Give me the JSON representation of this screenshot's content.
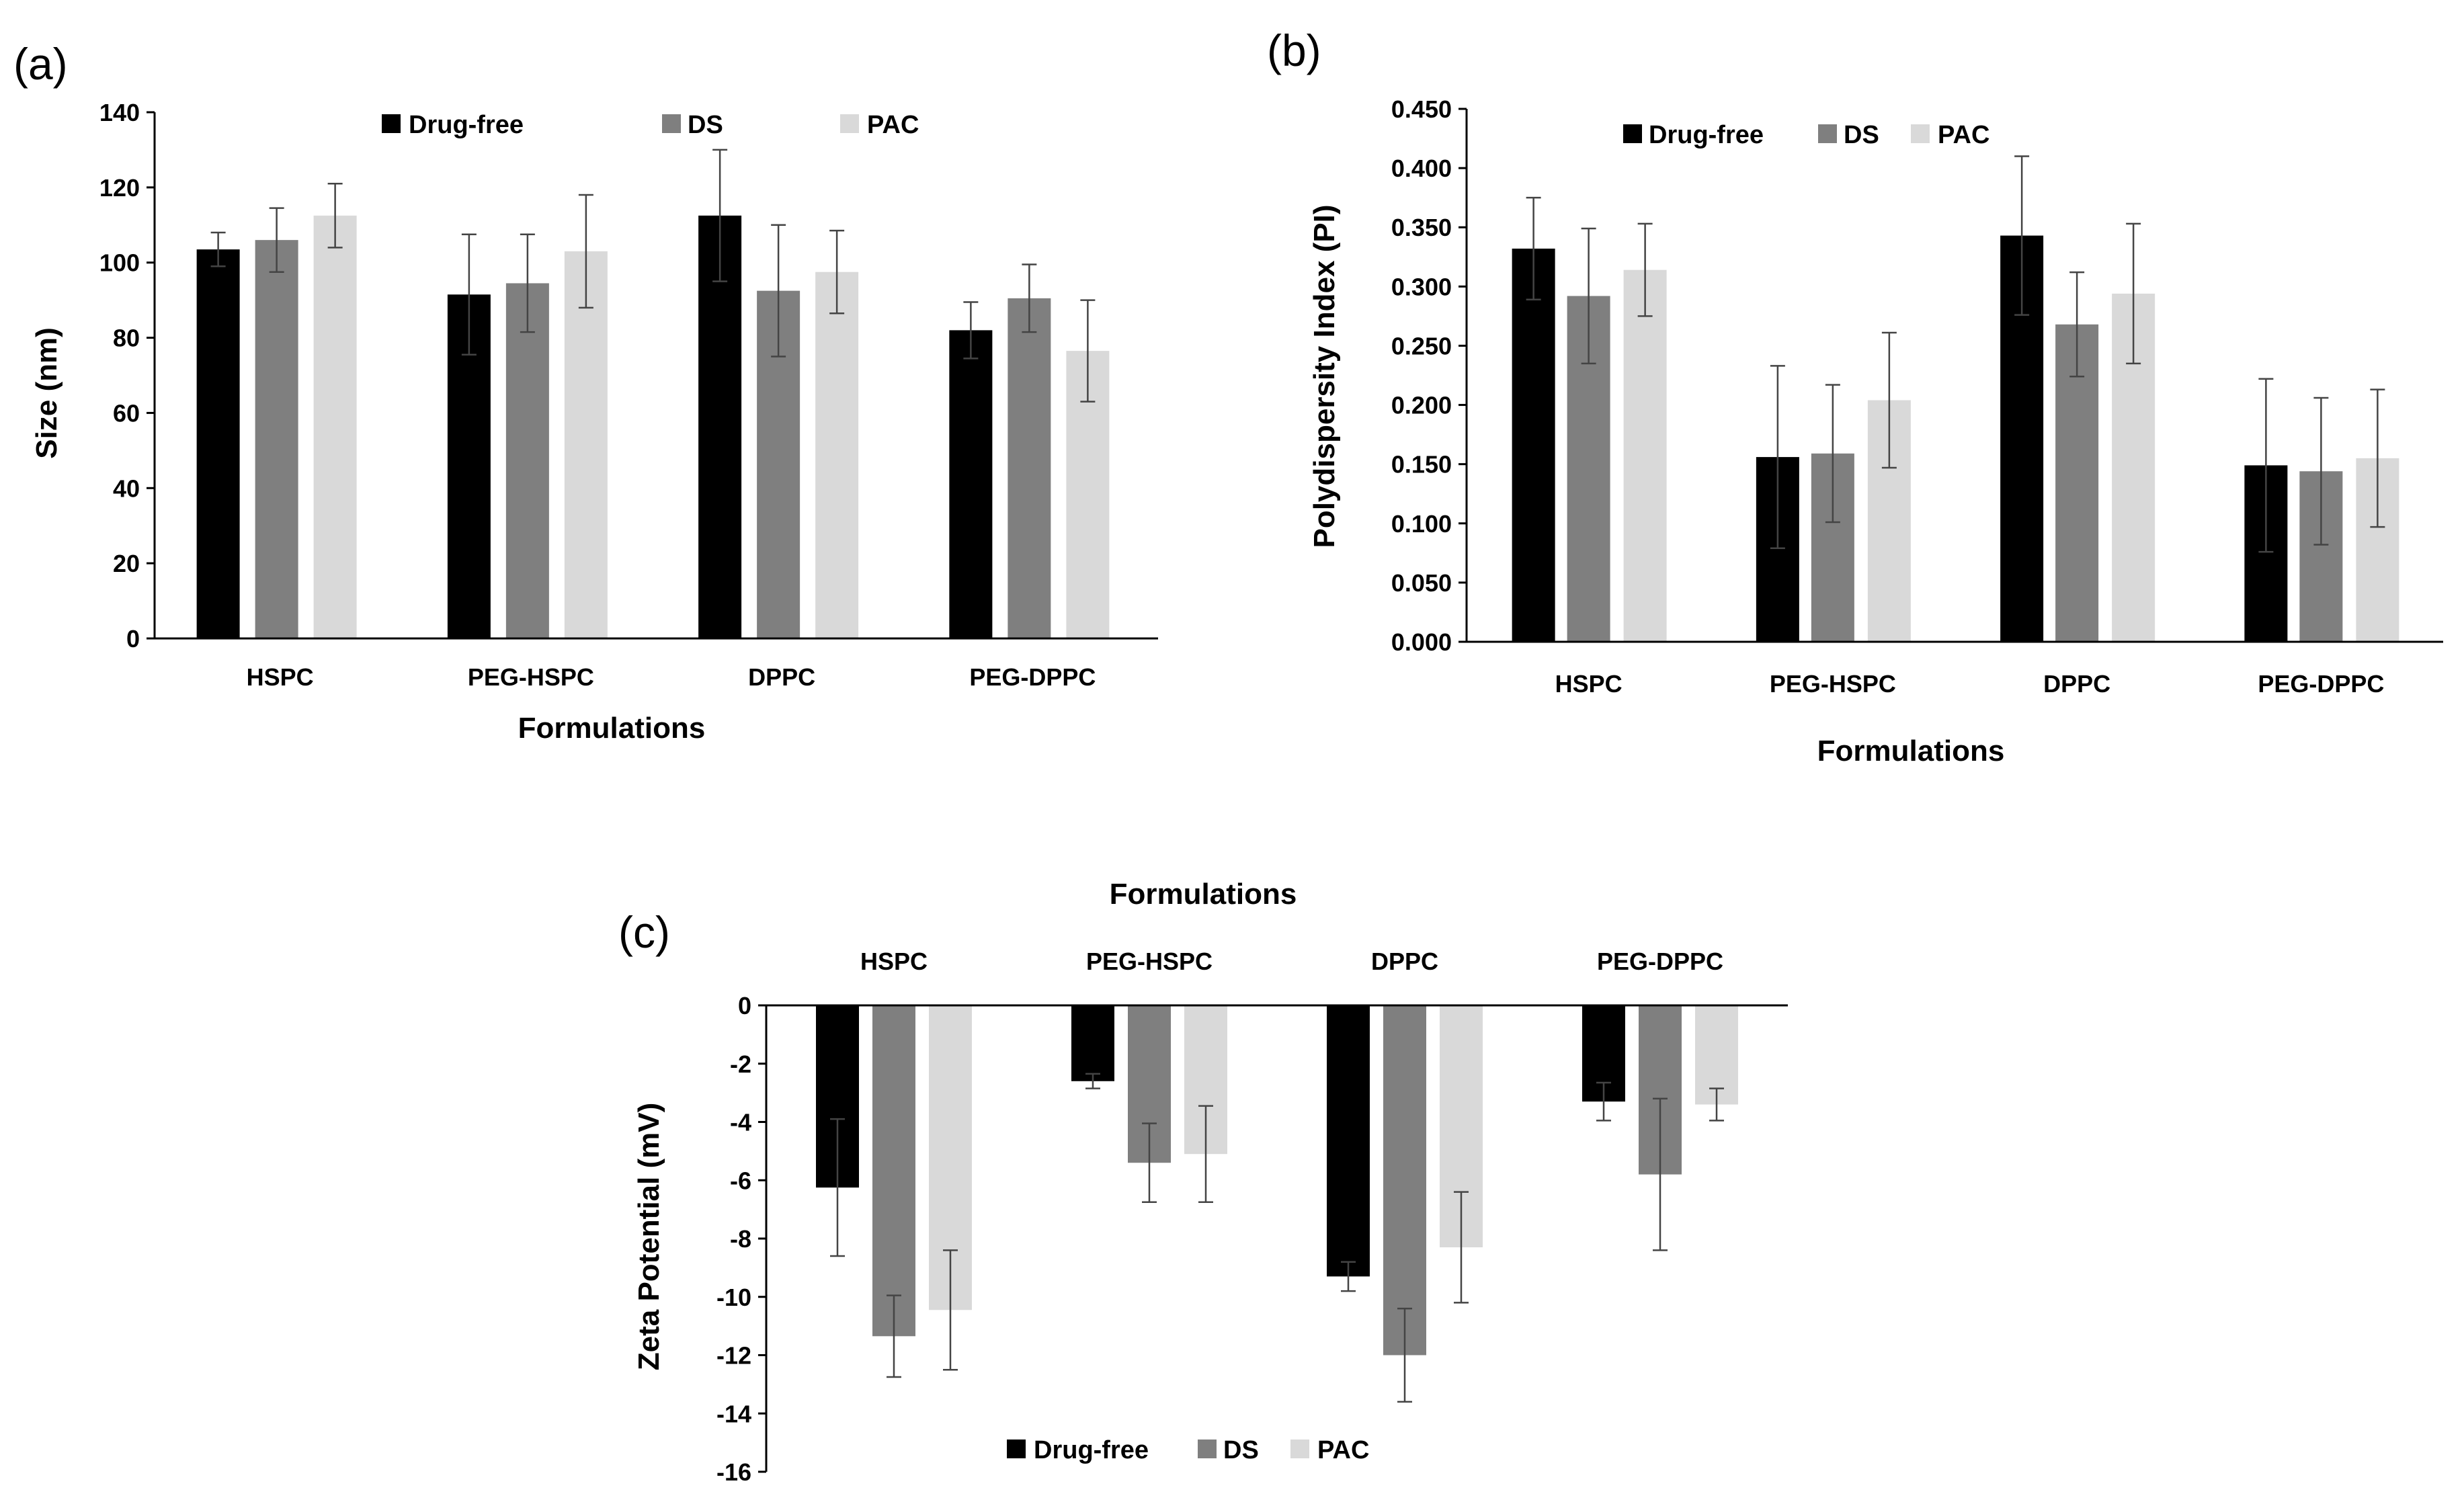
{
  "panels": [
    {
      "label": "(a)",
      "chart_data": {
        "type": "bar",
        "categories": [
          "HSPC",
          "PEG-HSPC",
          "DPPC",
          "PEG-DPPC"
        ],
        "series": [
          {
            "name": "Drug-free",
            "color": "#000000",
            "values": [
              103.5,
              91.5,
              112.5,
              82
            ],
            "errors": [
              4.5,
              16,
              17.5,
              7.5
            ]
          },
          {
            "name": "DS",
            "color": "#7f7f7f",
            "values": [
              106,
              94.5,
              92.5,
              90.5
            ],
            "errors": [
              8.5,
              13,
              17.5,
              9
            ]
          },
          {
            "name": "PAC",
            "color": "#d9d9d9",
            "values": [
              112.5,
              103,
              97.5,
              76.5
            ],
            "errors": [
              8.5,
              15,
              11,
              13.5
            ]
          }
        ],
        "xlabel": "Formulations",
        "ylabel": "Size (nm)",
        "ylim": [
          0,
          140
        ],
        "yticks": [
          "0",
          "20",
          "40",
          "60",
          "80",
          "100",
          "120",
          "140"
        ],
        "grid": false,
        "legend": "top"
      }
    },
    {
      "label": "(b)",
      "chart_data": {
        "type": "bar",
        "categories": [
          "HSPC",
          "PEG-HSPC",
          "DPPC",
          "PEG-DPPC"
        ],
        "series": [
          {
            "name": "Drug-free",
            "color": "#000000",
            "values": [
              0.332,
              0.156,
              0.343,
              0.149
            ],
            "errors": [
              0.043,
              0.077,
              0.067,
              0.073
            ]
          },
          {
            "name": "DS",
            "color": "#7f7f7f",
            "values": [
              0.292,
              0.159,
              0.268,
              0.144
            ],
            "errors": [
              0.057,
              0.058,
              0.044,
              0.062
            ]
          },
          {
            "name": "PAC",
            "color": "#d9d9d9",
            "values": [
              0.314,
              0.204,
              0.294,
              0.155
            ],
            "errors": [
              0.039,
              0.057,
              0.059,
              0.058
            ]
          }
        ],
        "xlabel": "Formulations",
        "ylabel": "Polydispersity Index (PI)",
        "ylim": [
          0,
          0.45
        ],
        "yticks": [
          "0.000",
          "0.050",
          "0.100",
          "0.150",
          "0.200",
          "0.250",
          "0.300",
          "0.350",
          "0.400",
          "0.450"
        ],
        "grid": false,
        "legend": "top"
      }
    },
    {
      "label": "(c)",
      "chart_data": {
        "type": "bar",
        "categories": [
          "HSPC",
          "PEG-HSPC",
          "DPPC",
          "PEG-DPPC"
        ],
        "series": [
          {
            "name": "Drug-free",
            "color": "#000000",
            "values": [
              -6.25,
              -2.6,
              -9.3,
              -3.3
            ],
            "errors": [
              2.35,
              0.25,
              0.5,
              0.65
            ]
          },
          {
            "name": "DS",
            "color": "#7f7f7f",
            "values": [
              -11.35,
              -5.4,
              -12,
              -5.8
            ],
            "errors": [
              1.4,
              1.35,
              1.6,
              2.6
            ]
          },
          {
            "name": "PAC",
            "color": "#d9d9d9",
            "values": [
              -10.45,
              -5.1,
              -8.3,
              -3.4
            ],
            "errors": [
              2.05,
              1.65,
              1.9,
              0.55
            ]
          }
        ],
        "xlabel": "Formulations",
        "ylabel": "Zeta Potential  (mV)",
        "ylim": [
          -16,
          0
        ],
        "yticks": [
          "0",
          "-2",
          "-4",
          "-6",
          "-8",
          "-10",
          "-12",
          "-14",
          "-16"
        ],
        "grid": false,
        "legend": "bottom"
      }
    }
  ]
}
